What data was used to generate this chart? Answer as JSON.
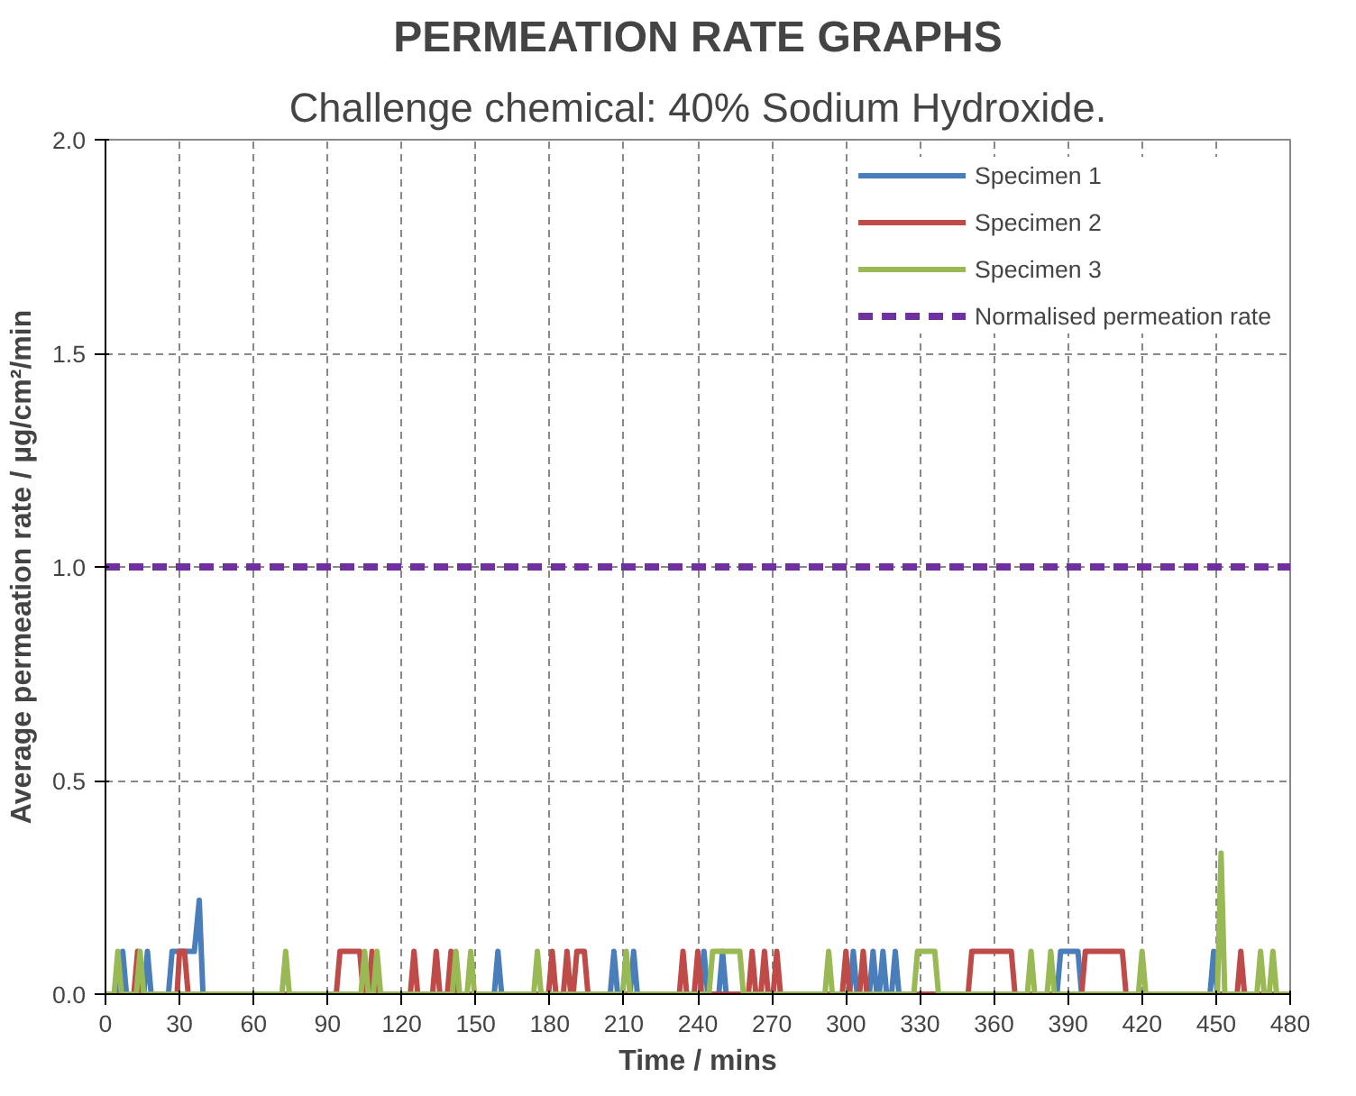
{
  "chart_data": {
    "type": "line",
    "title": "PERMEATION RATE GRAPHS",
    "subtitle": "Challenge chemical: 40% Sodium Hydroxide.",
    "xlabel": "Time / mins",
    "ylabel": "Average permeation rate / µg/cm²/min",
    "xlim": [
      0,
      480
    ],
    "xticks": [
      0,
      30,
      60,
      90,
      120,
      150,
      180,
      210,
      240,
      270,
      300,
      330,
      360,
      390,
      420,
      450,
      480
    ],
    "ylim": [
      0,
      2
    ],
    "yticks": [
      {
        "value": 0,
        "label": "0.0"
      },
      {
        "value": 0.5,
        "label": "0.5"
      },
      {
        "value": 1,
        "label": "1.0"
      },
      {
        "value": 1.5,
        "label": "1.5"
      },
      {
        "value": 2,
        "label": "2.0"
      }
    ],
    "grid": true,
    "legend": "top right",
    "line_style": "solid",
    "marker": "none",
    "series": [
      {
        "name": "Specimen 1",
        "color": "#4a7ebb",
        "x": [
          0,
          5.5,
          7,
          8.5,
          15.5,
          17,
          18.5,
          25.5,
          27,
          36,
          38,
          39.5,
          157.5,
          159,
          160.5,
          204.5,
          206,
          207.5,
          212.5,
          214,
          215.5,
          241,
          242.5,
          244,
          248.5,
          250,
          251.5,
          301.5,
          303,
          304.5,
          309.5,
          311,
          312.5,
          313.5,
          315,
          316.5,
          318.5,
          320,
          321.5,
          385.5,
          387,
          394,
          395.5,
          447.5,
          449,
          450.5,
          480
        ],
        "values": [
          0,
          0,
          0.1,
          0,
          0,
          0.1,
          0,
          0,
          0.1,
          0.1,
          0.22,
          0,
          0,
          0.1,
          0,
          0,
          0.1,
          0,
          0,
          0.1,
          0,
          0,
          0.1,
          0,
          0,
          0.1,
          0,
          0,
          0.1,
          0,
          0,
          0.1,
          0,
          0,
          0.1,
          0,
          0,
          0.1,
          0,
          0,
          0.1,
          0.1,
          0,
          0,
          0.1,
          0,
          0
        ]
      },
      {
        "name": "Specimen 2",
        "color": "#be4b48",
        "x": [
          0,
          11.5,
          13,
          14.5,
          29,
          30,
          32,
          33.5,
          93.5,
          95,
          103,
          104.5,
          106.5,
          108,
          109.5,
          123.5,
          125,
          126.5,
          132.5,
          134,
          135.5,
          138.5,
          140,
          141.5,
          179.5,
          181,
          182.5,
          185.5,
          187,
          188.5,
          189.5,
          191,
          194,
          195.5,
          232.5,
          234,
          235.5,
          238.5,
          240,
          241.5,
          260.5,
          262,
          263.5,
          265.5,
          267,
          268.5,
          270.5,
          272,
          273.5,
          298.5,
          300,
          301.5,
          305.5,
          307,
          308.5,
          349.5,
          351,
          367,
          368.5,
          395.5,
          397,
          412,
          413.5,
          458.5,
          460,
          461.5,
          480
        ],
        "values": [
          0,
          0,
          0.1,
          0,
          0,
          0.1,
          0.1,
          0,
          0,
          0.1,
          0.1,
          0,
          0,
          0.1,
          0,
          0,
          0.1,
          0,
          0,
          0.1,
          0,
          0,
          0.1,
          0,
          0,
          0.1,
          0,
          0,
          0.1,
          0,
          0,
          0.1,
          0.1,
          0,
          0,
          0.1,
          0,
          0,
          0.1,
          0,
          0,
          0.1,
          0,
          0,
          0.1,
          0,
          0,
          0.1,
          0,
          0,
          0.1,
          0,
          0,
          0.1,
          0,
          0,
          0.1,
          0.1,
          0,
          0,
          0.1,
          0.1,
          0,
          0,
          0.1,
          0,
          0
        ]
      },
      {
        "name": "Specimen 3",
        "color": "#98b954",
        "x": [
          0,
          3.5,
          5,
          6.5,
          12.5,
          14,
          15.5,
          71.5,
          73,
          74.5,
          103.5,
          105,
          106.5,
          108.5,
          110,
          111.5,
          140.5,
          142,
          143.5,
          146.5,
          148,
          149.5,
          173.5,
          175,
          176.5,
          209.5,
          211,
          212.5,
          244.5,
          246,
          257,
          258.5,
          291.5,
          293,
          294.5,
          327.5,
          329,
          336,
          337.5,
          373.5,
          375,
          376.5,
          381.5,
          383,
          384.5,
          418.5,
          420,
          421.5,
          450.5,
          452,
          453.5,
          466.5,
          468,
          469.5,
          471.5,
          473,
          474.5,
          480
        ],
        "values": [
          0,
          0,
          0.1,
          0,
          0,
          0.1,
          0,
          0,
          0.1,
          0,
          0,
          0.1,
          0,
          0,
          0.1,
          0,
          0,
          0.1,
          0,
          0,
          0.1,
          0,
          0,
          0.1,
          0,
          0,
          0.1,
          0,
          0,
          0.1,
          0.1,
          0,
          0,
          0.1,
          0,
          0,
          0.1,
          0.1,
          0,
          0,
          0.1,
          0,
          0,
          0.1,
          0,
          0,
          0.1,
          0,
          0,
          0.33,
          0,
          0,
          0.1,
          0,
          0,
          0.1,
          0,
          0
        ]
      },
      {
        "name": "Normalised permeation rate",
        "color": "#7030a0",
        "line_style": "dashed",
        "x": [
          0,
          480
        ],
        "values": [
          1,
          1
        ]
      }
    ]
  }
}
